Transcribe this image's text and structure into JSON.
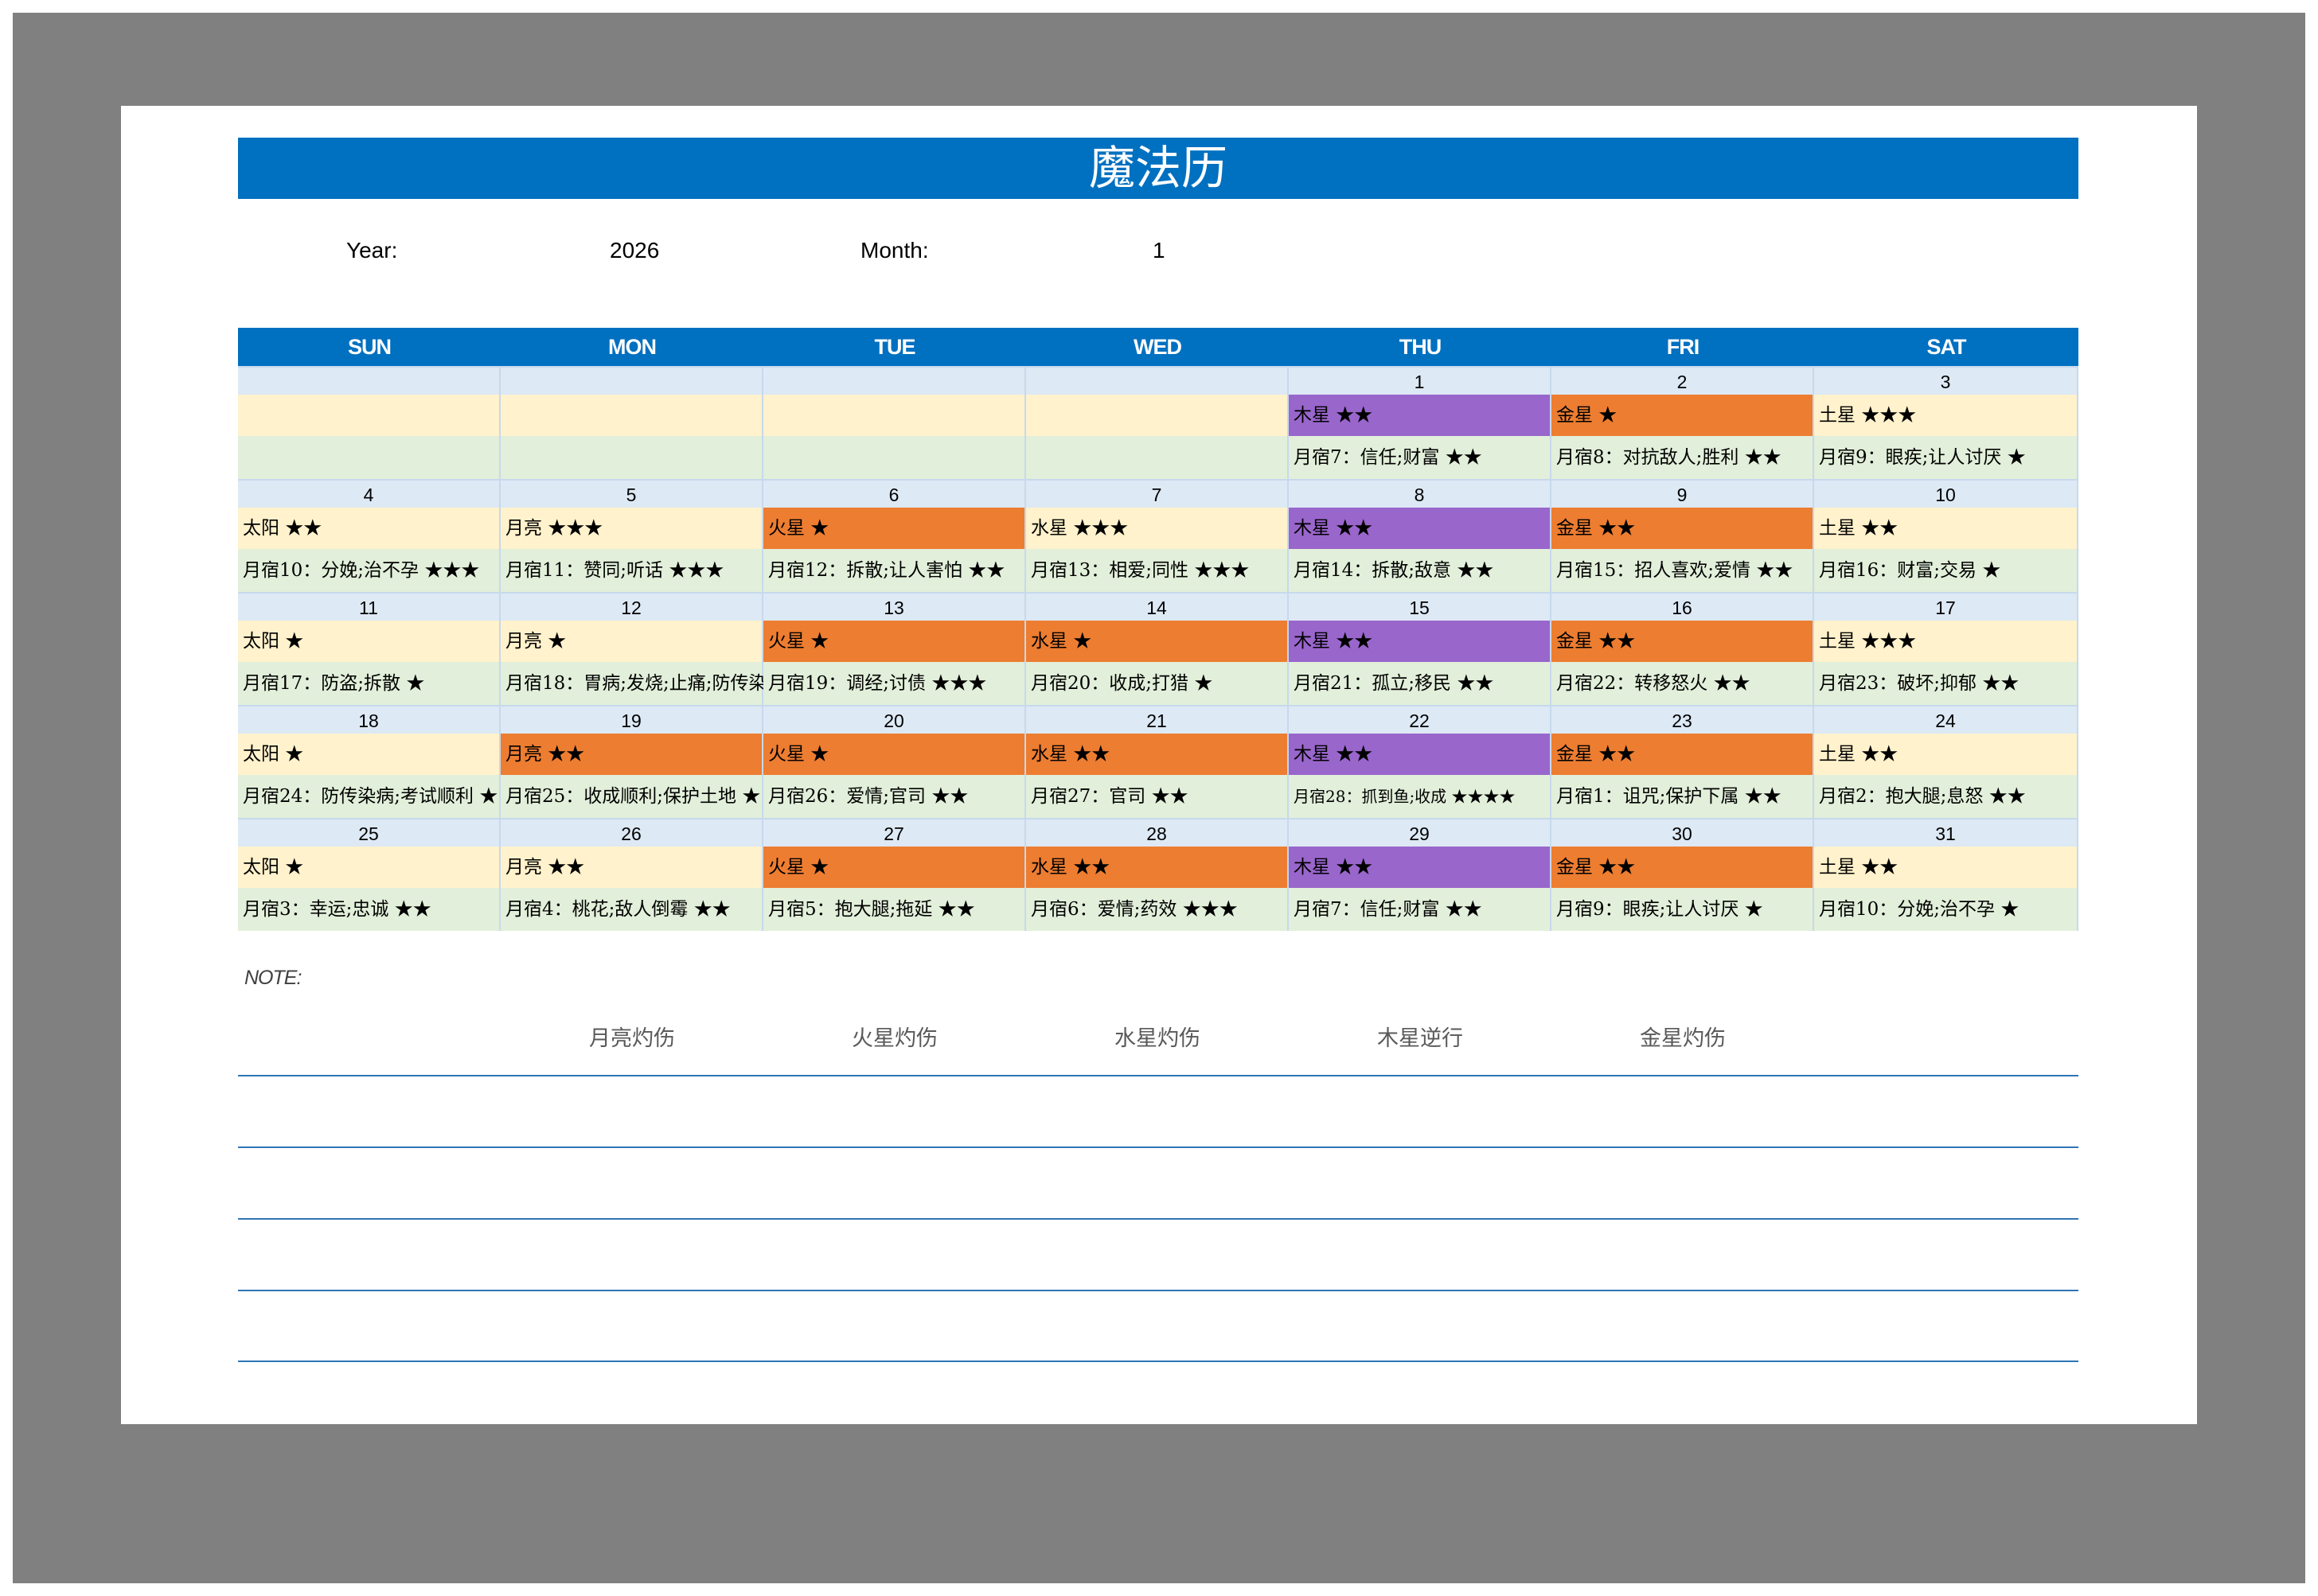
{
  "title": "魔法历",
  "meta": {
    "year_label": "Year:",
    "year": "2026",
    "month_label": "Month:",
    "month": "1"
  },
  "colors": {
    "header_blue": "#0070c0",
    "date_row": "#dde9f5",
    "planet_row": "#fff2cc",
    "mansion_row": "#e2efda",
    "orange": "#ed7d31",
    "purple": "#9966cc"
  },
  "weekdays": [
    "SUN",
    "MON",
    "TUE",
    "WED",
    "THU",
    "FRI",
    "SAT"
  ],
  "weeks": [
    [
      {
        "date": "",
        "planet": "",
        "mansion": "",
        "color": "yellow"
      },
      {
        "date": "",
        "planet": "",
        "mansion": "",
        "color": "yellow"
      },
      {
        "date": "",
        "planet": "",
        "mansion": "",
        "color": "yellow"
      },
      {
        "date": "",
        "planet": "",
        "mansion": "",
        "color": "yellow"
      },
      {
        "date": "1",
        "planet": "木星 ★★",
        "mansion": "月宿7：信任;财富 ★★",
        "color": "purple"
      },
      {
        "date": "2",
        "planet": "金星 ★",
        "mansion": "月宿8：对抗敌人;胜利 ★★",
        "color": "orange"
      },
      {
        "date": "3",
        "planet": "土星 ★★★",
        "mansion": "月宿9：眼疾;让人讨厌 ★",
        "color": "yellow"
      }
    ],
    [
      {
        "date": "4",
        "planet": "太阳 ★★",
        "mansion": "月宿10：分娩;治不孕 ★★★",
        "color": "yellow"
      },
      {
        "date": "5",
        "planet": "月亮 ★★★",
        "mansion": "月宿11：赞同;听话 ★★★",
        "color": "yellow"
      },
      {
        "date": "6",
        "planet": "火星 ★",
        "mansion": "月宿12：拆散;让人害怕 ★★",
        "color": "orange"
      },
      {
        "date": "7",
        "planet": "水星 ★★★",
        "mansion": "月宿13：相爱;同性 ★★★",
        "color": "yellow"
      },
      {
        "date": "8",
        "planet": "木星 ★★",
        "mansion": "月宿14：拆散;敌意 ★★",
        "color": "purple"
      },
      {
        "date": "9",
        "planet": "金星 ★★",
        "mansion": "月宿15：招人喜欢;爱情 ★★",
        "color": "orange"
      },
      {
        "date": "10",
        "planet": "土星 ★★",
        "mansion": "月宿16：财富;交易 ★",
        "color": "yellow"
      }
    ],
    [
      {
        "date": "11",
        "planet": "太阳 ★",
        "mansion": "月宿17：防盗;拆散 ★",
        "color": "yellow"
      },
      {
        "date": "12",
        "planet": "月亮 ★",
        "mansion": "月宿18：胃病;发烧;止痛;防传染",
        "color": "yellow"
      },
      {
        "date": "13",
        "planet": "火星 ★",
        "mansion": "月宿19：调经;讨债 ★★★",
        "color": "orange"
      },
      {
        "date": "14",
        "planet": "水星 ★",
        "mansion": "月宿20：收成;打猎 ★",
        "color": "orange"
      },
      {
        "date": "15",
        "planet": "木星 ★★",
        "mansion": "月宿21：孤立;移民 ★★",
        "color": "purple"
      },
      {
        "date": "16",
        "planet": "金星 ★★",
        "mansion": "月宿22：转移怒火 ★★",
        "color": "orange"
      },
      {
        "date": "17",
        "planet": "土星 ★★★",
        "mansion": "月宿23：破坏;抑郁 ★★",
        "color": "yellow"
      }
    ],
    [
      {
        "date": "18",
        "planet": "太阳 ★",
        "mansion": "月宿24：防传染病;考试顺利 ★",
        "color": "yellow"
      },
      {
        "date": "19",
        "planet": "月亮 ★★",
        "mansion": "月宿25：收成顺利;保护土地 ★",
        "color": "orange"
      },
      {
        "date": "20",
        "planet": "火星 ★",
        "mansion": "月宿26：爱情;官司 ★★",
        "color": "orange"
      },
      {
        "date": "21",
        "planet": "水星 ★★",
        "mansion": "月宿27：官司 ★★",
        "color": "orange"
      },
      {
        "date": "22",
        "planet": "木星 ★★",
        "mansion": "月宿28：抓到鱼;收成 ★★★★",
        "color": "purple",
        "small": true
      },
      {
        "date": "23",
        "planet": "金星 ★★",
        "mansion": "月宿1：诅咒;保护下属 ★★",
        "color": "orange"
      },
      {
        "date": "24",
        "planet": "土星 ★★",
        "mansion": "月宿2：抱大腿;息怒 ★★",
        "color": "yellow"
      }
    ],
    [
      {
        "date": "25",
        "planet": "太阳 ★",
        "mansion": "月宿3：幸运;忠诚 ★★",
        "color": "yellow"
      },
      {
        "date": "26",
        "planet": "月亮 ★★",
        "mansion": "月宿4：桃花;敌人倒霉 ★★",
        "color": "yellow"
      },
      {
        "date": "27",
        "planet": "火星 ★",
        "mansion": "月宿5：抱大腿;拖延 ★★",
        "color": "orange"
      },
      {
        "date": "28",
        "planet": "水星 ★★",
        "mansion": "月宿6：爱情;药效 ★★★",
        "color": "orange"
      },
      {
        "date": "29",
        "planet": "木星 ★★",
        "mansion": "月宿7：信任;财富 ★★",
        "color": "purple"
      },
      {
        "date": "30",
        "planet": "金星 ★★",
        "mansion": "月宿9：眼疾;让人讨厌 ★",
        "color": "orange"
      },
      {
        "date": "31",
        "planet": "土星 ★★",
        "mansion": "月宿10：分娩;治不孕 ★",
        "color": "yellow"
      }
    ]
  ],
  "note": {
    "label": "NOTE:",
    "legend": [
      "月亮灼伤",
      "火星灼伤",
      "水星灼伤",
      "木星逆行",
      "金星灼伤"
    ]
  }
}
